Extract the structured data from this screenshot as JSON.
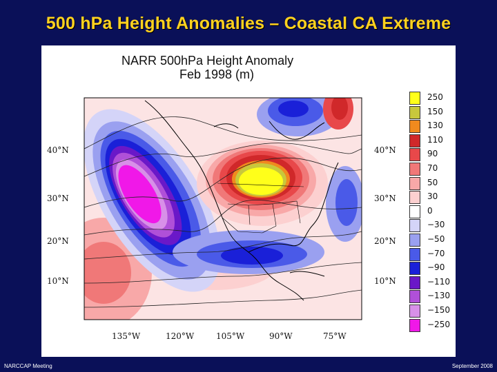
{
  "slide": {
    "title": "500 hPa Height Anomalies – Coastal CA Extreme",
    "footer_left": "NARCCAP Meeting",
    "footer_right": "September 2008"
  },
  "figure": {
    "title_line1": "NARR 500hPa Height Anomaly",
    "title_line2": "Feb 1998 (m)"
  },
  "chart_data": {
    "type": "heatmap",
    "title": "NARR 500hPa Height Anomaly Feb 1998 (m)",
    "lat_labels_left": [
      "40°N",
      "30°N",
      "20°N",
      "10°N"
    ],
    "lat_labels_right": [
      "40°N",
      "30°N",
      "20°N",
      "10°N"
    ],
    "lon_labels": [
      "135°W",
      "120°W",
      "105°W",
      "90°W",
      "75°W"
    ],
    "colorbar": {
      "levels": [
        "250",
        "150",
        "130",
        "110",
        "90",
        "70",
        "50",
        "30",
        "0",
        "−30",
        "−50",
        "−70",
        "−90",
        "−110",
        "−130",
        "−150",
        "−250"
      ],
      "colors": [
        "#ffff1a",
        "#c8c83c",
        "#f08a1e",
        "#d0282a",
        "#e8484a",
        "#f07878",
        "#f8a8a8",
        "#fcd0d0",
        "#ffffff",
        "#d4d4f8",
        "#9aa0f0",
        "#4a5ae8",
        "#1a20d8",
        "#6a18c8",
        "#b050d8",
        "#d890e8",
        "#f018e8"
      ]
    },
    "features": [
      {
        "name": "negative-anomaly-northeast-pacific",
        "sign": "negative",
        "peak": "-250"
      },
      {
        "name": "positive-anomaly-central-canada",
        "sign": "positive",
        "peak": "250"
      },
      {
        "name": "negative-anomaly-gulf-of-mexico",
        "sign": "negative",
        "peak": "-90"
      },
      {
        "name": "negative-anomaly-western-atlantic",
        "sign": "negative",
        "peak": "-70"
      }
    ]
  }
}
